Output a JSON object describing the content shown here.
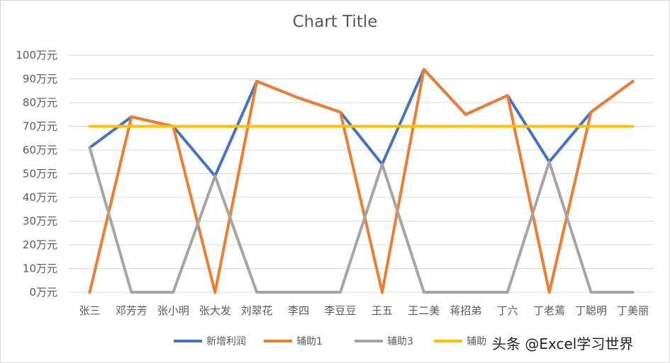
{
  "chart_data": {
    "type": "line",
    "title": "Chart Title",
    "categories": [
      "张三",
      "邓芳芳",
      "张小明",
      "张大发",
      "刘翠花",
      "李四",
      "李豆豆",
      "王五",
      "王二美",
      "蒋招弟",
      "丁六",
      "丁老蔫",
      "丁聪明",
      "丁美丽"
    ],
    "y_ticks": [
      "0万元",
      "10万元",
      "20万元",
      "30万元",
      "40万元",
      "50万元",
      "60万元",
      "70万元",
      "80万元",
      "90万元",
      "100万元"
    ],
    "ylim": [
      0,
      100
    ],
    "grid": true,
    "legend_position": "bottom",
    "series": [
      {
        "name": "新增利润",
        "color": "#4472c4",
        "values": [
          61,
          74,
          70,
          49,
          89,
          82,
          76,
          54,
          94,
          75,
          83,
          55,
          76,
          89
        ]
      },
      {
        "name": "辅助1",
        "color": "#ed7d31",
        "values": [
          0,
          74,
          70,
          0,
          89,
          82,
          76,
          0,
          94,
          75,
          83,
          0,
          76,
          89
        ]
      },
      {
        "name": "辅助3",
        "color": "#a5a5a5",
        "values": [
          61,
          0,
          0,
          49,
          0,
          0,
          0,
          54,
          0,
          0,
          0,
          55,
          0,
          0
        ]
      },
      {
        "name": "辅助",
        "color": "#ffc000",
        "values": [
          70,
          70,
          70,
          70,
          70,
          70,
          70,
          70,
          70,
          70,
          70,
          70,
          70,
          70
        ]
      }
    ]
  },
  "watermark": "头条 @Excel学习世界"
}
